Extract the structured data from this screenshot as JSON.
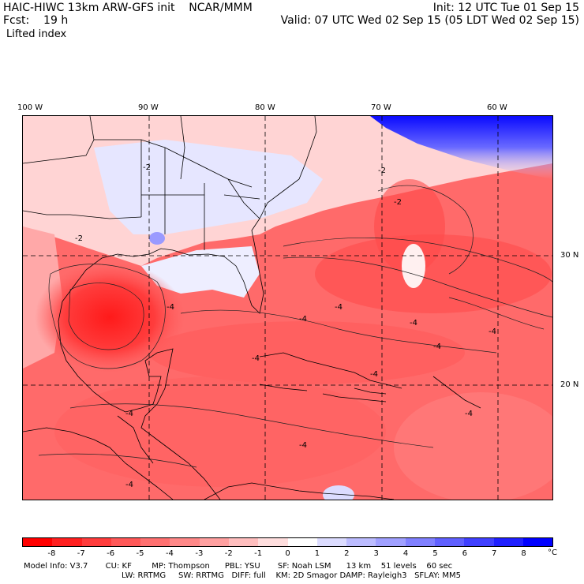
{
  "header": {
    "model_line": "HAIC-HIWC 13km ARW-GFS init    NCAR/MMM",
    "fcst_line": "Fcst:    19 h",
    "field_name": "Lifted index",
    "init_line": "Init: 12 UTC Tue 01 Sep 15",
    "valid_line": "Valid: 07 UTC Wed 02 Sep 15 (05 LDT Wed 02 Sep 15)"
  },
  "map": {
    "longitude_labels": [
      "100 W",
      "90 W",
      "80 W",
      "70 W",
      "60 W"
    ],
    "latitude_labels": [
      "30 N",
      "20 N"
    ],
    "contour_labels": [
      "-2",
      "-2",
      "-2",
      "-2",
      "-4",
      "-4",
      "-4",
      "-4",
      "-4",
      "-4",
      "-4",
      "-4",
      "-4",
      "-4",
      "-4",
      "-4"
    ]
  },
  "colorbar": {
    "colors": [
      "#ff0000",
      "#ff2020",
      "#ff3c3c",
      "#ff5858",
      "#ff7070",
      "#ff8888",
      "#ffa0a0",
      "#ffbebe",
      "#ffdede",
      "#ffffff",
      "#dcdcff",
      "#bcbcff",
      "#a0a0ff",
      "#8080ff",
      "#6060ff",
      "#4040ff",
      "#2020ff",
      "#0000ff"
    ],
    "tick_labels": [
      "-8",
      "-7",
      "-6",
      "-5",
      "-4",
      "-3",
      "-2",
      "-1",
      "0",
      "1",
      "2",
      "3",
      "4",
      "5",
      "6",
      "7",
      "8"
    ],
    "unit": "°C"
  },
  "model_info": {
    "line1": "Model Info: V3.7       CU: KF        MP: Thompson      PBL: YSU       SF: Noah LSM      13 km    51 levels    60 sec",
    "line2": "LW: RRTMG     SW: RRTMG   DIFF: full    KM: 2D Smagor DAMP: Rayleigh3   SFLAY: MM5"
  }
}
